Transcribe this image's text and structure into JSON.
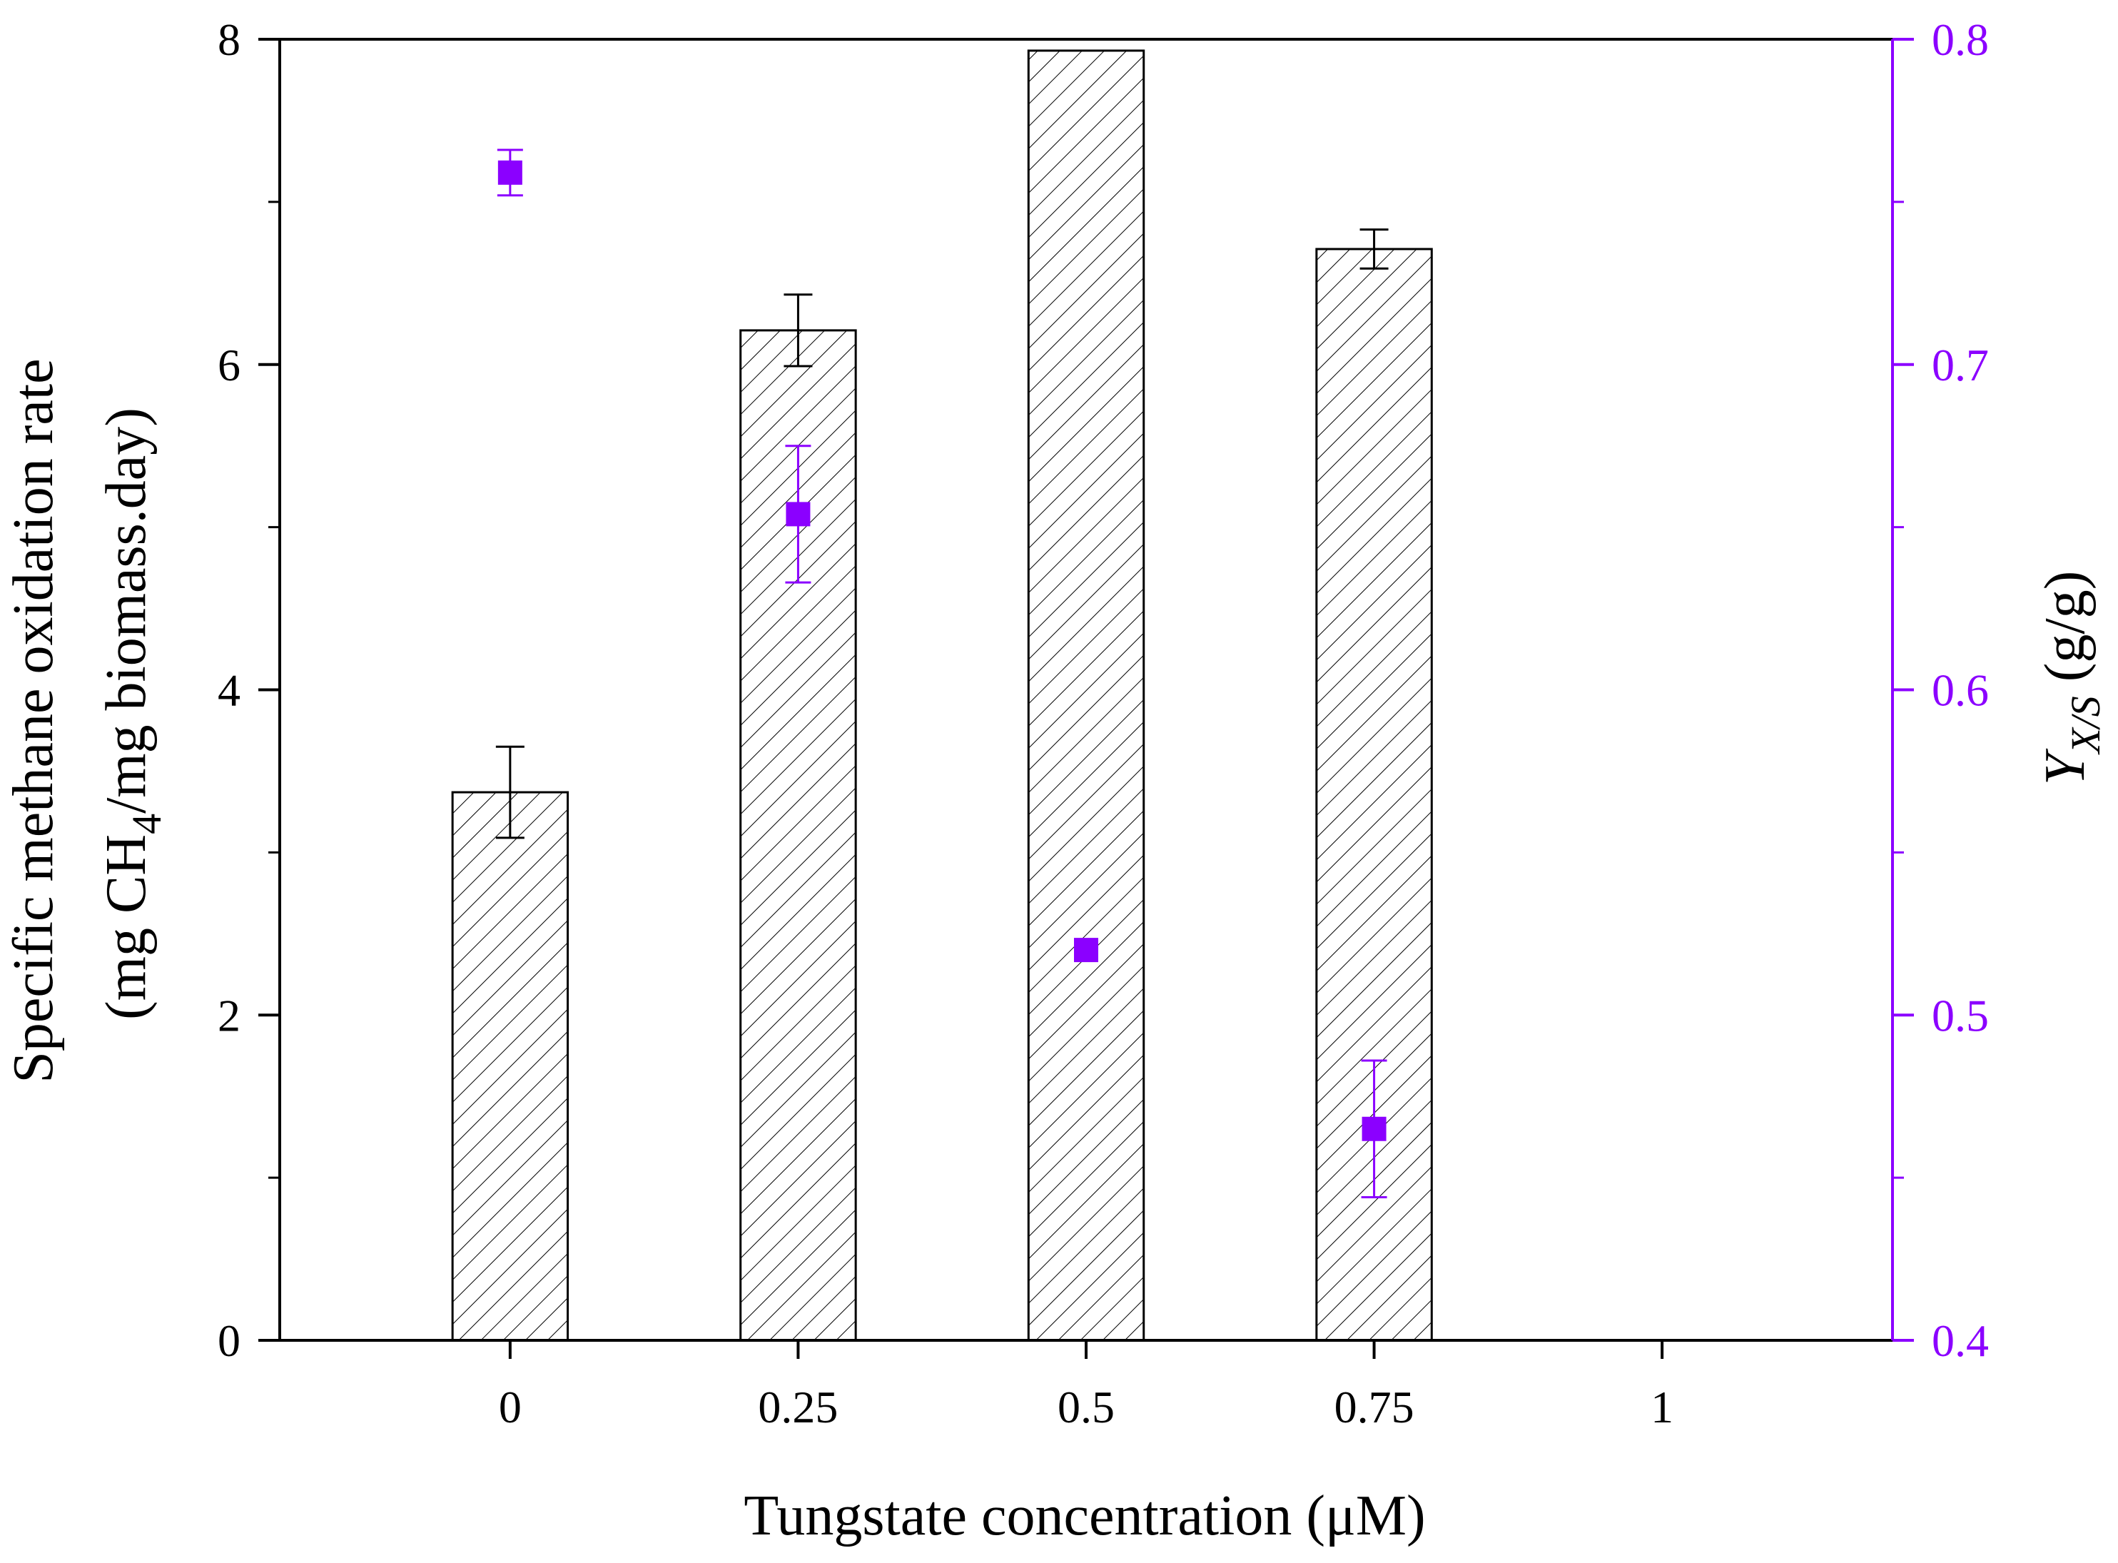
{
  "chart_data": {
    "type": "bar",
    "xlabel": "Tungstate concentration (μM)",
    "ylabel_left": {
      "line1": "Specific methane oxidation rate",
      "line2_pre": "(mg CH",
      "line2_sub": "4",
      "line2_post": "/mg biomass.day)"
    },
    "ylabel_right": {
      "main": "Y",
      "sub": "X/S",
      "post": " (g/g)"
    },
    "x_ticks": [
      "0",
      "0.25",
      "0.5",
      "0.75",
      "1"
    ],
    "y_left_ticks": [
      "0",
      "2",
      "4",
      "6",
      "8"
    ],
    "y_right_ticks": [
      "0.4",
      "0.5",
      "0.6",
      "0.7",
      "0.8"
    ],
    "x_range": [
      -0.2,
      1.2
    ],
    "y_left_range": [
      0,
      8
    ],
    "y_right_range": [
      0.4,
      0.8
    ],
    "y_left_minor_step": 1,
    "y_right_minor_step": 0.05,
    "bar_width": 0.1,
    "bars": [
      {
        "x": 0,
        "value": 3.37,
        "error": 0.28
      },
      {
        "x": 0.25,
        "value": 6.21,
        "error": 0.22
      },
      {
        "x": 0.5,
        "value": 7.93,
        "error": 0
      },
      {
        "x": 0.75,
        "value": 6.71,
        "error": 0.12
      }
    ],
    "points": [
      {
        "x": 0,
        "value": 0.759,
        "error": 0.007
      },
      {
        "x": 0.25,
        "value": 0.654,
        "error": 0.021
      },
      {
        "x": 0.5,
        "value": 0.52,
        "error": 0
      },
      {
        "x": 0.75,
        "value": 0.465,
        "error": 0.021
      }
    ],
    "colors": {
      "bar_fill": "#ffffff",
      "bar_hatch": "#000000",
      "bar_edge": "#000000",
      "point": "#8b00ff",
      "right_axis": "#8b00ff",
      "left_axis": "#000000"
    }
  }
}
